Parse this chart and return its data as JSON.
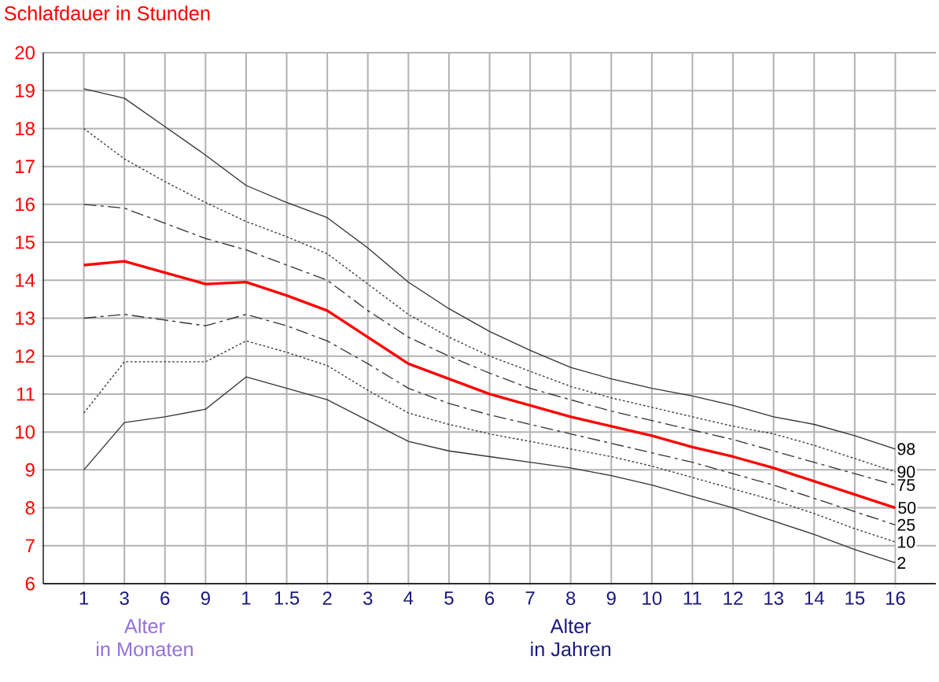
{
  "chart_data": {
    "type": "line",
    "ylabel": "Schlafdauer in Stunden",
    "categories": [
      "1",
      "3",
      "6",
      "9",
      "1",
      "1.5",
      "2",
      "3",
      "4",
      "5",
      "6",
      "7",
      "8",
      "9",
      "10",
      "11",
      "12",
      "13",
      "14",
      "15",
      "16"
    ],
    "ylim": [
      6,
      20
    ],
    "yticks": [
      6,
      7,
      8,
      9,
      10,
      11,
      12,
      13,
      14,
      15,
      16,
      17,
      18,
      19,
      20
    ],
    "grid": true,
    "marker": "none",
    "annotations": [
      "Alter",
      "in Monaten",
      "Alter",
      "in Jahren"
    ],
    "series": [
      {
        "name": "98",
        "color": "#333333",
        "line_style": "solid",
        "values": [
          19.05,
          18.8,
          18.05,
          17.3,
          16.5,
          16.05,
          15.65,
          14.85,
          13.95,
          13.25,
          12.65,
          12.15,
          11.7,
          11.4,
          11.15,
          10.95,
          10.7,
          10.4,
          10.2,
          9.9,
          9.55
        ]
      },
      {
        "name": "90",
        "color": "#333333",
        "line_style": "dotted",
        "values": [
          18.0,
          17.2,
          16.6,
          16.05,
          15.55,
          15.15,
          14.7,
          13.9,
          13.1,
          12.5,
          12.0,
          11.6,
          11.2,
          10.9,
          10.65,
          10.4,
          10.15,
          9.95,
          9.65,
          9.3,
          8.95
        ]
      },
      {
        "name": "75",
        "color": "#333333",
        "line_style": "dashed",
        "values": [
          16.0,
          15.9,
          15.5,
          15.1,
          14.8,
          14.4,
          14.0,
          13.2,
          12.5,
          12.0,
          11.55,
          11.15,
          10.85,
          10.55,
          10.3,
          10.05,
          9.8,
          9.5,
          9.2,
          8.9,
          8.6
        ]
      },
      {
        "name": "50",
        "color": "#ff0000",
        "line_style": "solid",
        "values": [
          14.4,
          14.5,
          14.2,
          13.9,
          13.95,
          13.6,
          13.2,
          12.5,
          11.8,
          11.4,
          11.0,
          10.7,
          10.4,
          10.15,
          9.9,
          9.6,
          9.35,
          9.05,
          8.7,
          8.35,
          8.0
        ]
      },
      {
        "name": "25",
        "color": "#333333",
        "line_style": "dashed",
        "values": [
          13.0,
          13.1,
          12.95,
          12.8,
          13.1,
          12.8,
          12.4,
          11.8,
          11.15,
          10.75,
          10.45,
          10.2,
          9.95,
          9.7,
          9.45,
          9.2,
          8.9,
          8.6,
          8.25,
          7.9,
          7.55
        ]
      },
      {
        "name": "10",
        "color": "#333333",
        "line_style": "dotted",
        "values": [
          10.5,
          11.85,
          11.85,
          11.85,
          12.4,
          12.1,
          11.75,
          11.1,
          10.5,
          10.2,
          9.95,
          9.75,
          9.55,
          9.35,
          9.1,
          8.8,
          8.5,
          8.2,
          7.85,
          7.45,
          7.1
        ]
      },
      {
        "name": "2",
        "color": "#333333",
        "line_style": "solid",
        "values": [
          9.0,
          10.25,
          10.4,
          10.6,
          11.45,
          11.15,
          10.85,
          10.3,
          9.75,
          9.5,
          9.35,
          9.2,
          9.05,
          8.85,
          8.6,
          8.3,
          8.0,
          7.65,
          7.3,
          6.9,
          6.55
        ]
      }
    ]
  }
}
